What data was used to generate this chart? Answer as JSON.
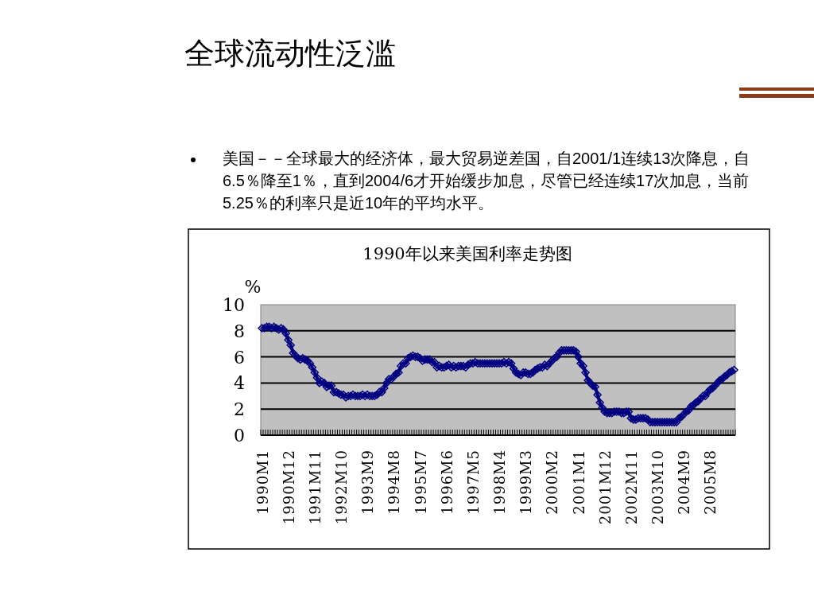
{
  "chart_data": {
    "type": "line",
    "title": "全球流动性泛滥",
    "subtitle": "1990年以来美国利率走势图",
    "annotations": [
      "美国－－全球最大的经济体，最大贸易逆差国，自2001/1连续13次降息，自6.5％降至1％，直到2004/6才开始缓步加息，尽管已经连续17次加息，当前5.25％的利率只是近10年的平均水平。"
    ],
    "ylabel": "%",
    "categories": [
      "1990M1",
      null,
      null,
      null,
      null,
      null,
      null,
      null,
      null,
      null,
      null,
      "1990M12",
      null,
      null,
      null,
      null,
      null,
      null,
      null,
      null,
      null,
      null,
      "1991M11",
      null,
      null,
      null,
      null,
      null,
      null,
      null,
      null,
      null,
      null,
      "1992M10",
      null,
      null,
      null,
      null,
      null,
      null,
      null,
      null,
      null,
      null,
      "1993M9",
      null,
      null,
      null,
      null,
      null,
      null,
      null,
      null,
      null,
      null,
      "1994M8",
      null,
      null,
      null,
      null,
      null,
      null,
      null,
      null,
      null,
      null,
      "1995M7",
      null,
      null,
      null,
      null,
      null,
      null,
      null,
      null,
      null,
      null,
      "1996M6",
      null,
      null,
      null,
      null,
      null,
      null,
      null,
      null,
      null,
      null,
      "1997M5",
      null,
      null,
      null,
      null,
      null,
      null,
      null,
      null,
      null,
      null,
      "1998M4",
      null,
      null,
      null,
      null,
      null,
      null,
      null,
      null,
      null,
      null,
      "1999M3",
      null,
      null,
      null,
      null,
      null,
      null,
      null,
      null,
      null,
      null,
      "2000M2",
      null,
      null,
      null,
      null,
      null,
      null,
      null,
      null,
      null,
      null,
      "2001M1",
      null,
      null,
      null,
      null,
      null,
      null,
      null,
      null,
      null,
      null,
      "2001M12",
      null,
      null,
      null,
      null,
      null,
      null,
      null,
      null,
      null,
      null,
      "2002M11",
      null,
      null,
      null,
      null,
      null,
      null,
      null,
      null,
      null,
      null,
      "2003M10",
      null,
      null,
      null,
      null,
      null,
      null,
      null,
      null,
      null,
      null,
      "2004M9",
      null,
      null,
      null,
      null,
      null,
      null,
      null,
      null,
      null,
      null,
      "2005M8",
      null,
      null,
      null,
      null,
      null,
      null,
      null,
      null,
      null,
      null
    ],
    "series": [
      {
        "color": "#000080",
        "values": [
          8.2,
          8.2,
          8.3,
          8.3,
          8.2,
          8.3,
          8.2,
          8.1,
          8.2,
          8.1,
          7.8,
          7.3,
          6.9,
          6.3,
          6.1,
          5.9,
          5.8,
          5.9,
          5.8,
          5.7,
          5.5,
          5.2,
          4.8,
          4.4,
          4.0,
          4.1,
          4.0,
          3.7,
          3.8,
          3.8,
          3.3,
          3.3,
          3.2,
          3.1,
          3.1,
          2.9,
          3.0,
          3.0,
          3.1,
          3.0,
          3.0,
          3.0,
          3.1,
          3.0,
          3.1,
          3.0,
          3.0,
          3.0,
          3.1,
          3.3,
          3.3,
          3.6,
          4.0,
          4.3,
          4.3,
          4.5,
          4.7,
          4.8,
          5.3,
          5.5,
          5.5,
          5.9,
          6.0,
          6.1,
          6.0,
          6.0,
          5.9,
          5.7,
          5.8,
          5.8,
          5.8,
          5.6,
          5.6,
          5.2,
          5.3,
          5.2,
          5.2,
          5.3,
          5.4,
          5.2,
          5.3,
          5.2,
          5.3,
          5.3,
          5.3,
          5.2,
          5.4,
          5.5,
          5.5,
          5.6,
          5.5,
          5.5,
          5.5,
          5.5,
          5.5,
          5.5,
          5.5,
          5.5,
          5.5,
          5.5,
          5.5,
          5.6,
          5.5,
          5.6,
          5.5,
          5.1,
          4.8,
          4.7,
          4.6,
          4.8,
          4.8,
          4.7,
          4.7,
          4.8,
          5.0,
          5.1,
          5.2,
          5.2,
          5.4,
          5.3,
          5.5,
          5.7,
          5.9,
          6.0,
          6.3,
          6.5,
          6.5,
          6.5,
          6.5,
          6.5,
          6.5,
          6.4,
          6.0,
          5.5,
          5.3,
          4.8,
          4.2,
          4.0,
          3.8,
          3.7,
          3.1,
          2.5,
          2.1,
          1.8,
          1.7,
          1.7,
          1.7,
          1.8,
          1.8,
          1.8,
          1.7,
          1.7,
          1.8,
          1.8,
          1.3,
          1.2,
          1.2,
          1.3,
          1.3,
          1.3,
          1.3,
          1.2,
          1.0,
          1.0,
          1.0,
          1.0,
          1.0,
          1.0,
          1.0,
          1.0,
          1.0,
          1.0,
          1.0,
          1.0,
          1.3,
          1.4,
          1.6,
          1.8,
          1.9,
          2.2,
          2.3,
          2.5,
          2.6,
          2.8,
          3.0,
          3.0,
          3.3,
          3.5,
          3.6,
          3.8,
          4.0,
          4.2,
          4.3,
          4.5,
          4.6,
          4.8,
          4.9,
          5.0
        ]
      }
    ],
    "ylim": [
      0,
      10
    ],
    "yticks": [
      0,
      2,
      4,
      6,
      8,
      10
    ],
    "grid": "y",
    "marker": "diamond"
  }
}
